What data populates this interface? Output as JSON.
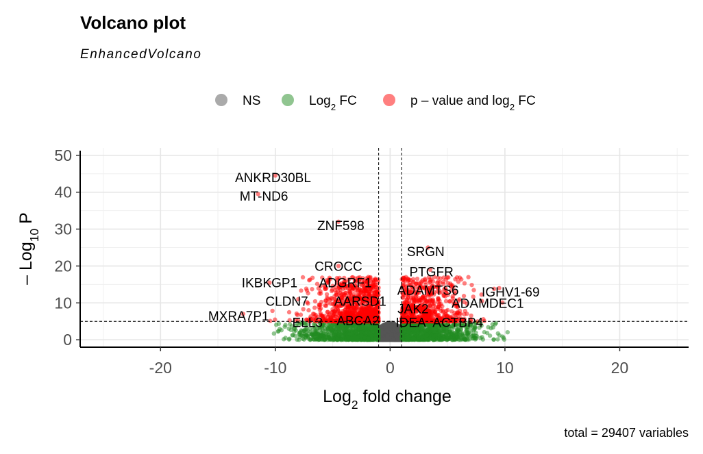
{
  "chart_data": {
    "type": "scatter",
    "title": "Volcano plot",
    "subtitle": "EnhancedVolcano",
    "caption": "total = 29407 variables",
    "xlabel": {
      "prefix": "Log",
      "sub": "2",
      "suffix": " fold change"
    },
    "ylabel": {
      "prefix": "– Log",
      "sub": "10",
      "suffix": " P"
    },
    "xlim": [
      -27,
      26
    ],
    "ylim": [
      -2,
      52
    ],
    "x_ticks": [
      -20,
      -10,
      0,
      10,
      20
    ],
    "y_ticks": [
      0,
      10,
      20,
      30,
      40,
      50
    ],
    "grid": true,
    "fc_cutoff": 1,
    "p_cutoff_log10": 5,
    "colors": {
      "ns": "#555555",
      "fc": "#228b22",
      "sig": "#ff0000"
    },
    "legend": {
      "position": "top",
      "items": [
        {
          "key": "ns",
          "label": "NS"
        },
        {
          "key": "fc",
          "label": "Log",
          "sub": "2",
          "tail": " FC"
        },
        {
          "key": "sig",
          "label": "p – value and log",
          "sub": "2",
          "tail": " FC"
        }
      ]
    },
    "labeled_points": [
      {
        "gene": "ANKRD30BL",
        "x": -10.0,
        "y": 44.5
      },
      {
        "gene": "MT-ND6",
        "x": -11.5,
        "y": 39.5
      },
      {
        "gene": "ZNF598",
        "x": -4.5,
        "y": 32.0
      },
      {
        "gene": "SRGN",
        "x": 3.3,
        "y": 25.0
      },
      {
        "gene": "CROCC",
        "x": -4.5,
        "y": 20.0
      },
      {
        "gene": "PTGFR",
        "x": 3.5,
        "y": 19.0
      },
      {
        "gene": "IKBKGP1",
        "x": -10.5,
        "y": 15.5
      },
      {
        "gene": "ADGRF1",
        "x": -5.5,
        "y": 15.5
      },
      {
        "gene": "ADAMTS6",
        "x": 3.4,
        "y": 14.0
      },
      {
        "gene": "IGHV1-69",
        "x": 9.5,
        "y": 14.0
      },
      {
        "gene": "CLDN7",
        "x": -8.0,
        "y": 11.0
      },
      {
        "gene": "AARSD1",
        "x": -3.5,
        "y": 11.0
      },
      {
        "gene": "ADAMDEC1",
        "x": 8.0,
        "y": 10.5
      },
      {
        "gene": "JAK2",
        "x": 2.5,
        "y": 9.0
      },
      {
        "gene": "MXRA7P1",
        "x": -12.8,
        "y": 7.0
      },
      {
        "gene": "ELL3",
        "x": -6.5,
        "y": 5.5
      },
      {
        "gene": "ABCA2",
        "x": -2.5,
        "y": 5.5
      },
      {
        "gene": "IDEA",
        "x": 1.5,
        "y": 5.5
      },
      {
        "gene": "ACTBP4",
        "x": 5.0,
        "y": 5.5
      }
    ],
    "label_positions": [
      {
        "gene": "ANKRD30BL",
        "x": -10.2,
        "y": 44.0
      },
      {
        "gene": "MT-ND6",
        "x": -11.0,
        "y": 39.0
      },
      {
        "gene": "ZNF598",
        "x": -4.3,
        "y": 31.0
      },
      {
        "gene": "SRGN",
        "x": 3.1,
        "y": 24.0
      },
      {
        "gene": "CROCC",
        "x": -4.5,
        "y": 20.0
      },
      {
        "gene": "PTGFR",
        "x": 3.6,
        "y": 18.5
      },
      {
        "gene": "IKBKGP1",
        "x": -10.5,
        "y": 15.5
      },
      {
        "gene": "ADGRF1",
        "x": -3.9,
        "y": 15.5
      },
      {
        "gene": "ADAMTS6",
        "x": 3.3,
        "y": 13.5
      },
      {
        "gene": "IGHV1-69",
        "x": 10.5,
        "y": 13.0
      },
      {
        "gene": "CLDN7",
        "x": -9.0,
        "y": 10.5
      },
      {
        "gene": "AARSD1",
        "x": -2.6,
        "y": 10.5
      },
      {
        "gene": "ADAMDEC1",
        "x": 8.5,
        "y": 10.0
      },
      {
        "gene": "JAK2",
        "x": 2.0,
        "y": 8.5
      },
      {
        "gene": "MXRA7P1",
        "x": -13.2,
        "y": 6.5
      },
      {
        "gene": "ELL3",
        "x": -7.2,
        "y": 4.8
      },
      {
        "gene": "ABCA2",
        "x": -2.8,
        "y": 5.2
      },
      {
        "gene": "IDEA",
        "x": 1.8,
        "y": 4.8
      },
      {
        "gene": "ACTBP4",
        "x": 5.9,
        "y": 4.8
      }
    ]
  }
}
